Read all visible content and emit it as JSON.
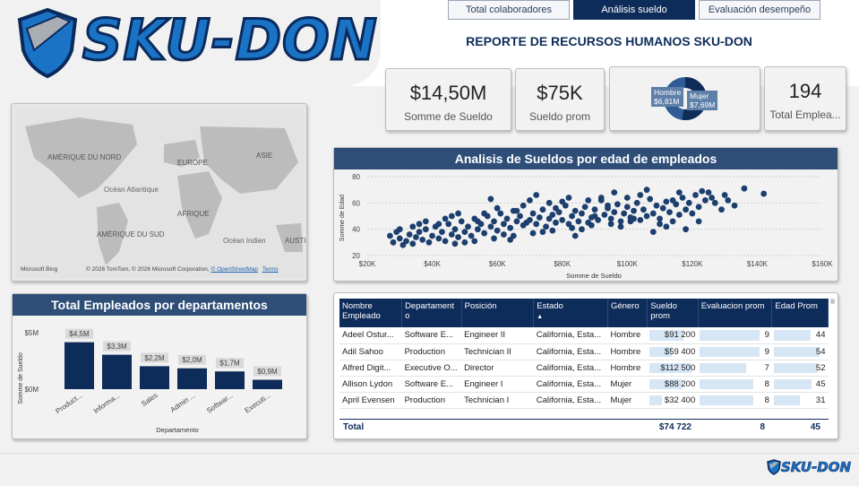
{
  "brand": {
    "name": "SKU-DON",
    "footer_name": "SKU-DON",
    "primary_color": "#0e2c5a",
    "accent_color": "#1b73c6"
  },
  "tabs": [
    {
      "label": "Total colaboradores"
    },
    {
      "label": "Análisis sueldo"
    },
    {
      "label": "Evaluación desempeño"
    }
  ],
  "report_title": "REPORTE DE RECURSOS HUMANOS SKU-DON",
  "kpis": {
    "salary_sum": {
      "value": "$14,50M",
      "label": "Somme de Sueldo"
    },
    "salary_avg": {
      "value": "$75K",
      "label": "Sueldo prom"
    },
    "gender": {
      "male_label": "Hombre",
      "male_value": "$6,81M",
      "female_label": "Mujer",
      "female_value": "$7,69M"
    },
    "employees": {
      "value": "194",
      "label": "Total Emplea..."
    }
  },
  "map": {
    "labels": [
      "AMÉRIQUE DU NORD",
      "EUROPE",
      "ASIE",
      "Océan Atlantique",
      "AFRIQUE",
      "AMÉRIQUE DU SUD",
      "Océan Indien",
      "AUSTI"
    ],
    "bing": "Microsoft Bing",
    "credits_prefix": "© 2026 TomTom, © 2026 Microsoft Corporation,",
    "credits_link": "© OpenStreetMap",
    "terms": "Terms"
  },
  "dept_chart": {
    "title": "Total Empleados por departamentos",
    "ylabel": "Somme de Sueldo",
    "xlabel": "Departamento",
    "ticks": [
      "$5M",
      "$0M"
    ]
  },
  "scatter": {
    "title": "Analisis de Sueldos por edad de empleados",
    "ylabel": "Somme de Edad",
    "xlabel": "Somme de Sueldo",
    "yticks": [
      "80",
      "60",
      "40",
      "20"
    ],
    "xticks": [
      "$20K",
      "$40K",
      "$60K",
      "$80K",
      "$100K",
      "$120K",
      "$140K",
      "$160K"
    ]
  },
  "table": {
    "headers": [
      "Nombre Empleado",
      "Departament o",
      "Posición",
      "Estado",
      "Género",
      "Sueldo prom",
      "Evaluacion prom",
      "Edad Prom"
    ],
    "sort_indicator": "▲",
    "rows": [
      [
        "Adeel Ostur...",
        "Software E...",
        "Engineer II",
        "California, Esta...",
        "Hombre",
        "$91 200",
        "9",
        "44"
      ],
      [
        "Adil Sahoo",
        "Production",
        "Technician II",
        "California, Esta...",
        "Hombre",
        "$59 400",
        "9",
        "54"
      ],
      [
        "Alfred Digit...",
        "Executive O...",
        "Director",
        "California, Esta...",
        "Hombre",
        "$112 500",
        "7",
        "52"
      ],
      [
        "Allison Lydon",
        "Software E...",
        "Engineer I",
        "California, Esta...",
        "Mujer",
        "$88 200",
        "8",
        "45"
      ],
      [
        "April Evensen",
        "Production",
        "Technician I",
        "California, Esta...",
        "Mujer",
        "$32 400",
        "8",
        "31"
      ]
    ],
    "total": {
      "label": "Total",
      "salary": "$74 722",
      "eval": "8",
      "age": "45"
    }
  },
  "chart_data": [
    {
      "type": "bar",
      "categories": [
        "Product...",
        "Informa...",
        "Sales",
        "Admin ...",
        "Softwar...",
        "Executi..."
      ],
      "values": [
        4.5,
        3.3,
        2.2,
        2.0,
        1.7,
        0.9
      ],
      "data_labels": [
        "$4,5M",
        "$3,3M",
        "$2,2M",
        "$2,0M",
        "$1,7M",
        "$0,9M"
      ],
      "ylabel": "Somme de Sueldo",
      "xlabel": "Departamento",
      "ylim": [
        0,
        5.5
      ],
      "color": "#0e2c5a"
    },
    {
      "type": "scatter",
      "xlabel": "Somme de Sueldo",
      "ylabel": "Somme de Edad",
      "xlim": [
        20000,
        160000
      ],
      "ylim": [
        20,
        80
      ],
      "color": "#1d3f6e",
      "points": [
        [
          27000,
          35
        ],
        [
          28000,
          30
        ],
        [
          29000,
          38
        ],
        [
          30000,
          33
        ],
        [
          31000,
          28
        ],
        [
          32000,
          31
        ],
        [
          33000,
          36
        ],
        [
          34000,
          29
        ],
        [
          35000,
          34
        ],
        [
          36000,
          38
        ],
        [
          37000,
          32
        ],
        [
          38000,
          40
        ],
        [
          39000,
          30
        ],
        [
          40000,
          35
        ],
        [
          41000,
          42
        ],
        [
          42000,
          33
        ],
        [
          43000,
          38
        ],
        [
          44000,
          31
        ],
        [
          45000,
          44
        ],
        [
          46000,
          36
        ],
        [
          47000,
          40
        ],
        [
          48000,
          34
        ],
        [
          49000,
          46
        ],
        [
          50000,
          38
        ],
        [
          51000,
          42
        ],
        [
          52000,
          35
        ],
        [
          53000,
          48
        ],
        [
          54000,
          40
        ],
        [
          55000,
          44
        ],
        [
          56000,
          37
        ],
        [
          57000,
          50
        ],
        [
          58000,
          42
        ],
        [
          59000,
          46
        ],
        [
          60000,
          39
        ],
        [
          61000,
          52
        ],
        [
          62000,
          44
        ],
        [
          63000,
          48
        ],
        [
          64000,
          41
        ],
        [
          65000,
          54
        ],
        [
          66000,
          46
        ],
        [
          67000,
          50
        ],
        [
          68000,
          43
        ],
        [
          69000,
          45
        ],
        [
          70000,
          47
        ],
        [
          71000,
          52
        ],
        [
          72000,
          44
        ],
        [
          73000,
          49
        ],
        [
          74000,
          55
        ],
        [
          75000,
          42
        ],
        [
          76000,
          48
        ],
        [
          77000,
          51
        ],
        [
          78000,
          45
        ],
        [
          79000,
          53
        ],
        [
          80000,
          47
        ],
        [
          81000,
          58
        ],
        [
          82000,
          44
        ],
        [
          83000,
          50
        ],
        [
          84000,
          54
        ],
        [
          85000,
          46
        ],
        [
          86000,
          52
        ],
        [
          87000,
          57
        ],
        [
          88000,
          45
        ],
        [
          89000,
          49
        ],
        [
          90000,
          55
        ],
        [
          91000,
          47
        ],
        [
          92000,
          62
        ],
        [
          93000,
          51
        ],
        [
          94000,
          56
        ],
        [
          95000,
          48
        ],
        [
          96000,
          53
        ],
        [
          97000,
          59
        ],
        [
          98000,
          46
        ],
        [
          99000,
          52
        ],
        [
          100000,
          57
        ],
        [
          101000,
          49
        ],
        [
          102000,
          54
        ],
        [
          103000,
          60
        ],
        [
          104000,
          47
        ],
        [
          105000,
          55
        ],
        [
          106000,
          50
        ],
        [
          107000,
          63
        ],
        [
          108000,
          52
        ],
        [
          109000,
          58
        ],
        [
          110000,
          48
        ],
        [
          111000,
          56
        ],
        [
          112000,
          61
        ],
        [
          113000,
          53
        ],
        [
          114000,
          46
        ],
        [
          115000,
          59
        ],
        [
          116000,
          51
        ],
        [
          117000,
          64
        ],
        [
          118000,
          55
        ],
        [
          119000,
          60
        ],
        [
          120000,
          52
        ],
        [
          121000,
          66
        ],
        [
          122000,
          57
        ],
        [
          123000,
          69
        ],
        [
          124000,
          62
        ],
        [
          125000,
          68
        ],
        [
          127000,
          60
        ],
        [
          129000,
          55
        ],
        [
          131000,
          62
        ],
        [
          133000,
          58
        ],
        [
          136000,
          71
        ],
        [
          142000,
          67
        ],
        [
          36000,
          44
        ],
        [
          44000,
          48
        ],
        [
          50000,
          30
        ],
        [
          56000,
          52
        ],
        [
          62000,
          36
        ],
        [
          68000,
          58
        ],
        [
          74000,
          38
        ],
        [
          80000,
          61
        ],
        [
          86000,
          40
        ],
        [
          92000,
          64
        ],
        [
          98000,
          42
        ],
        [
          104000,
          66
        ],
        [
          110000,
          44
        ],
        [
          116000,
          68
        ],
        [
          122000,
          46
        ],
        [
          58000,
          63
        ],
        [
          64000,
          32
        ],
        [
          72000,
          66
        ],
        [
          84000,
          35
        ],
        [
          96000,
          68
        ],
        [
          108000,
          38
        ],
        [
          118000,
          40
        ],
        [
          76000,
          60
        ],
        [
          88000,
          62
        ],
        [
          100000,
          64
        ],
        [
          112000,
          42
        ],
        [
          66000,
          54
        ],
        [
          78000,
          56
        ],
        [
          90000,
          50
        ],
        [
          102000,
          48
        ],
        [
          114000,
          62
        ],
        [
          54000,
          46
        ],
        [
          46000,
          50
        ],
        [
          42000,
          44
        ],
        [
          34000,
          42
        ],
        [
          30000,
          40
        ],
        [
          38000,
          46
        ],
        [
          48000,
          52
        ],
        [
          60000,
          56
        ],
        [
          70000,
          62
        ],
        [
          82000,
          64
        ],
        [
          94000,
          58
        ],
        [
          106000,
          70
        ],
        [
          126000,
          64
        ],
        [
          130000,
          66
        ],
        [
          47000,
          29
        ],
        [
          53000,
          31
        ],
        [
          59000,
          33
        ],
        [
          65000,
          35
        ],
        [
          71000,
          37
        ],
        [
          77000,
          39
        ],
        [
          83000,
          41
        ],
        [
          89000,
          43
        ],
        [
          95000,
          44
        ],
        [
          101000,
          46
        ]
      ]
    }
  ]
}
